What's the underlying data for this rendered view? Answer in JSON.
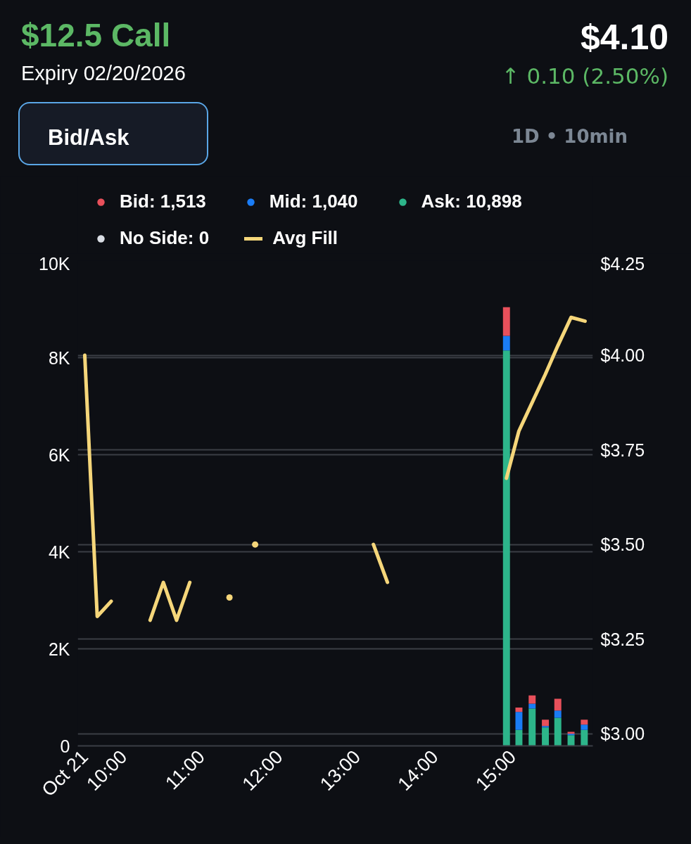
{
  "chart_data": {
    "type": "bar",
    "stacked": true,
    "title": "$12.5 Call",
    "subtitle": "Expiry 02/20/2026",
    "annotations": [
      "$4.10",
      "↑ 0.10 (2.50%)",
      "Bid/Ask",
      "1D • 10min"
    ],
    "x": [
      14.92,
      15.08,
      15.25,
      15.42,
      15.58,
      15.75,
      15.92
    ],
    "series": [
      {
        "name": "Ask: 10,898",
        "color": "#2db58a",
        "values": [
          8150,
          330,
          770,
          380,
          580,
          220,
          330
        ]
      },
      {
        "name": "Mid: 1,040",
        "color": "#1a7cf5",
        "values": [
          300,
          370,
          100,
          30,
          150,
          30,
          110
        ]
      },
      {
        "name": "Bid: 1,513",
        "color": "#e8505b",
        "values": [
          590,
          90,
          170,
          130,
          240,
          40,
          100
        ]
      },
      {
        "name": "No Side: 0",
        "color": "#d9dde4",
        "values": [
          0,
          0,
          0,
          0,
          0,
          0,
          0
        ]
      },
      {
        "name": "Avg Fill",
        "type": "line",
        "axis": "y2",
        "color": "#f5d67a",
        "x": [
          9.5,
          9.66,
          9.84,
          10.0,
          10.34,
          10.51,
          10.68,
          10.85,
          11.0,
          11.36,
          11.5,
          11.69,
          12.0,
          13.21,
          13.39,
          14.0,
          14.92,
          15.08,
          15.25,
          15.42,
          15.58,
          15.75,
          15.93
        ],
        "values": [
          4.0,
          3.31,
          3.35,
          null,
          3.3,
          3.4,
          3.3,
          3.4,
          null,
          3.36,
          null,
          3.5,
          null,
          3.5,
          3.4,
          null,
          3.675,
          3.8,
          3.875,
          3.95,
          4.025,
          4.1,
          4.09
        ]
      }
    ],
    "xlim": [
      9.41,
      16.03
    ],
    "xticks": [
      {
        "value": 9.5,
        "label": "Oct 21"
      },
      {
        "value": 10,
        "label": "10:00"
      },
      {
        "value": 11,
        "label": "11:00"
      },
      {
        "value": 12,
        "label": "12:00"
      },
      {
        "value": 13,
        "label": "13:00"
      },
      {
        "value": 14,
        "label": "14:00"
      },
      {
        "value": 15,
        "label": "15:00"
      }
    ],
    "ylim": [
      0,
      10000
    ],
    "yticks": [
      0,
      {
        "value": 2000,
        "label": "2K"
      },
      {
        "value": 4000,
        "label": "4K"
      },
      {
        "value": 6000,
        "label": "6K"
      },
      {
        "value": 8000,
        "label": "8K"
      },
      {
        "value": 10000,
        "label": "10K"
      }
    ],
    "y2lim": [
      2.968,
      4.25
    ],
    "y2ticks": [
      {
        "value": 3.0,
        "label": "$3.00"
      },
      {
        "value": 3.25,
        "label": "$3.25"
      },
      {
        "value": 3.5,
        "label": "$3.50"
      },
      {
        "value": 3.75,
        "label": "$3.75"
      },
      {
        "value": 4.0,
        "label": "$4.00"
      },
      {
        "value": 4.25,
        "label": "$4.25"
      }
    ],
    "grid": "y",
    "legend": "top left",
    "marker": "none",
    "line_style": "solid"
  }
}
